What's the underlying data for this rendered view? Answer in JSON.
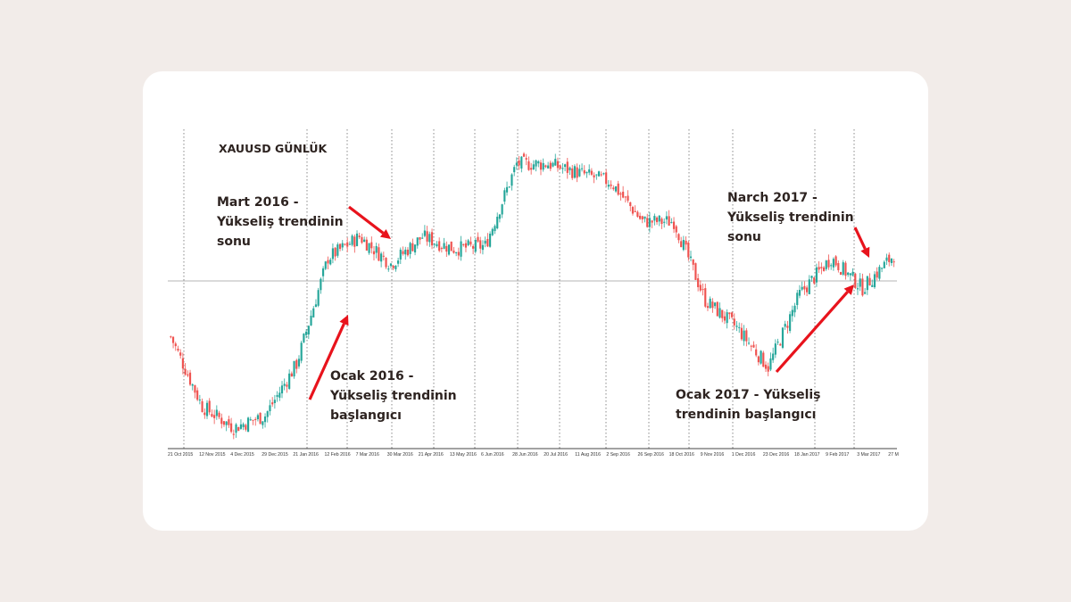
{
  "chart_data": {
    "type": "candlestick",
    "title": "XAUUSD GÜNLÜK",
    "x_tick_labels": [
      "21 Oct 2015",
      "12 Nov 2015",
      "4 Dec 2015",
      "29 Dec 2015",
      "21 Jan 2016",
      "12 Feb 2016",
      "7 Mar 2016",
      "30 Mar 2016",
      "21 Apr 2016",
      "13 May 2016",
      "6 Jun 2016",
      "28 Jun 2016",
      "20 Jul 2016",
      "11 Aug 2016",
      "2 Sep 2016",
      "26 Sep 2016",
      "18 Oct 2016",
      "9 Nov 2016",
      "1 Dec 2016",
      "23 Dec 2016",
      "18 Jan 2017",
      "9 Feb 2017",
      "3 Mar 2017",
      "27 M"
    ],
    "grid": "vertical dotted at each date label",
    "reference_line": "horizontal solid grey",
    "colors": {
      "up": "#26a69a",
      "down": "#ef5350",
      "arrow": "#e8131c",
      "grid": "#8a8a8a"
    },
    "price_path": [
      {
        "date": "21 Oct 2015",
        "level": 0.36
      },
      {
        "date": "12 Nov 2015",
        "level": 0.13
      },
      {
        "date": "4 Dec 2015",
        "level": 0.06
      },
      {
        "date": "29 Dec 2015",
        "level": 0.1
      },
      {
        "date": "21 Jan 2016",
        "level": 0.27
      },
      {
        "date": "12 Feb 2016",
        "level": 0.62
      },
      {
        "date": "7 Mar 2016",
        "level": 0.69
      },
      {
        "date": "30 Mar 2016",
        "level": 0.6
      },
      {
        "date": "21 Apr 2016",
        "level": 0.69
      },
      {
        "date": "13 May 2016",
        "level": 0.65
      },
      {
        "date": "6 Jun 2016",
        "level": 0.66
      },
      {
        "date": "28 Jun 2016",
        "level": 0.93
      },
      {
        "date": "20 Jul 2016",
        "level": 0.93
      },
      {
        "date": "11 Aug 2016",
        "level": 0.9
      },
      {
        "date": "2 Sep 2016",
        "level": 0.87
      },
      {
        "date": "26 Sep 2016",
        "level": 0.74
      },
      {
        "date": "18 Oct 2016",
        "level": 0.74
      },
      {
        "date": "9 Nov 2016",
        "level": 0.48
      },
      {
        "date": "1 Dec 2016",
        "level": 0.39
      },
      {
        "date": "23 Dec 2016",
        "level": 0.26
      },
      {
        "date": "18 Jan 2017",
        "level": 0.5
      },
      {
        "date": "9 Feb 2017",
        "level": 0.62
      },
      {
        "date": "3 Mar 2017",
        "level": 0.52
      },
      {
        "date": "27 M",
        "level": 0.63
      }
    ],
    "annotations": [
      {
        "text": "Mart 2016 -\nYükseliş trendinin\nsonu"
      },
      {
        "text": "Ocak 2016 -\nYükseliş trendinin\nbaşlangıcı"
      },
      {
        "text": "Narch 2017 -\nYükseliş trendinin\nsonu"
      },
      {
        "text": "Ocak 2017 - Yükseliş\ntrendinin başlangıcı"
      }
    ]
  }
}
